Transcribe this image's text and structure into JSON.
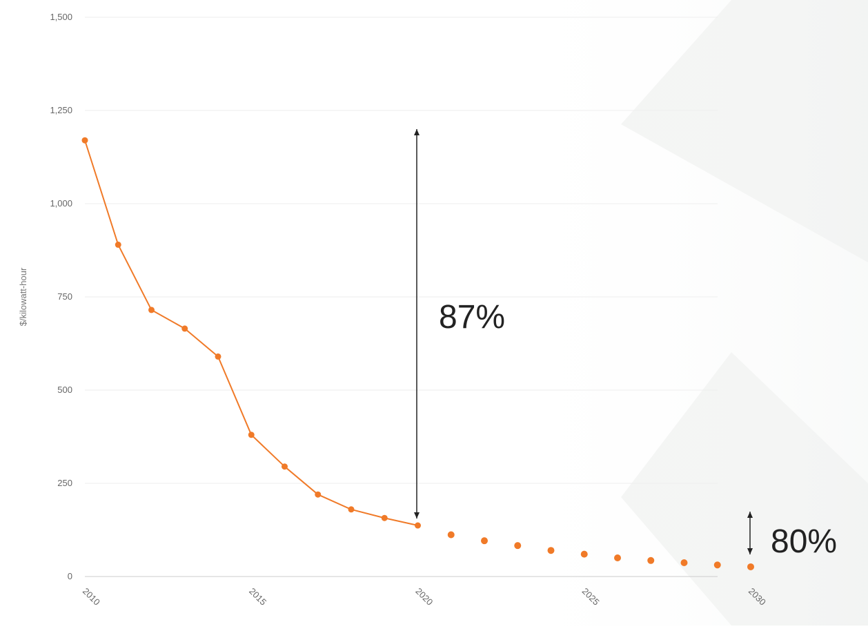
{
  "chart_data": {
    "type": "line",
    "title": "",
    "xlabel": "",
    "ylabel": "$/kilowatt-hour",
    "xlim": [
      2010,
      2030
    ],
    "ylim": [
      0,
      1500
    ],
    "x_ticks": [
      2010,
      2015,
      2020,
      2025,
      2030
    ],
    "x_tick_labels": [
      "2010",
      "2015",
      "2020",
      "2025",
      "2030"
    ],
    "y_ticks": [
      0,
      250,
      500,
      750,
      1000,
      1250,
      1500
    ],
    "y_tick_labels": [
      "0",
      "250",
      "500",
      "750",
      "1,000",
      "1,250",
      "1,500"
    ],
    "grid": true,
    "series": [
      {
        "style": "solid-line",
        "color": "#f07a28",
        "x": [
          2010,
          2011,
          2012,
          2013,
          2014,
          2015,
          2016,
          2017,
          2018,
          2019,
          2020
        ],
        "y": [
          1170,
          890,
          715,
          665,
          590,
          380,
          295,
          220,
          180,
          157,
          137
        ]
      },
      {
        "style": "dots",
        "color": "#f07a28",
        "x": [
          2021,
          2022,
          2023,
          2024,
          2025,
          2026,
          2027,
          2028,
          2029,
          2030
        ],
        "y": [
          112,
          96,
          83,
          70,
          60,
          50,
          43,
          37,
          31,
          26
        ]
      }
    ],
    "annotations": [
      {
        "text": "87%",
        "from_y": 1200,
        "to_y": 137,
        "x": 2020
      },
      {
        "text": "80%",
        "from_y": 137,
        "to_y": 26,
        "x": 2030
      }
    ]
  },
  "colors": {
    "series": "#f07a28",
    "grid": "#eeeeee",
    "axis": "#cccccc",
    "annotation": "#222222"
  }
}
